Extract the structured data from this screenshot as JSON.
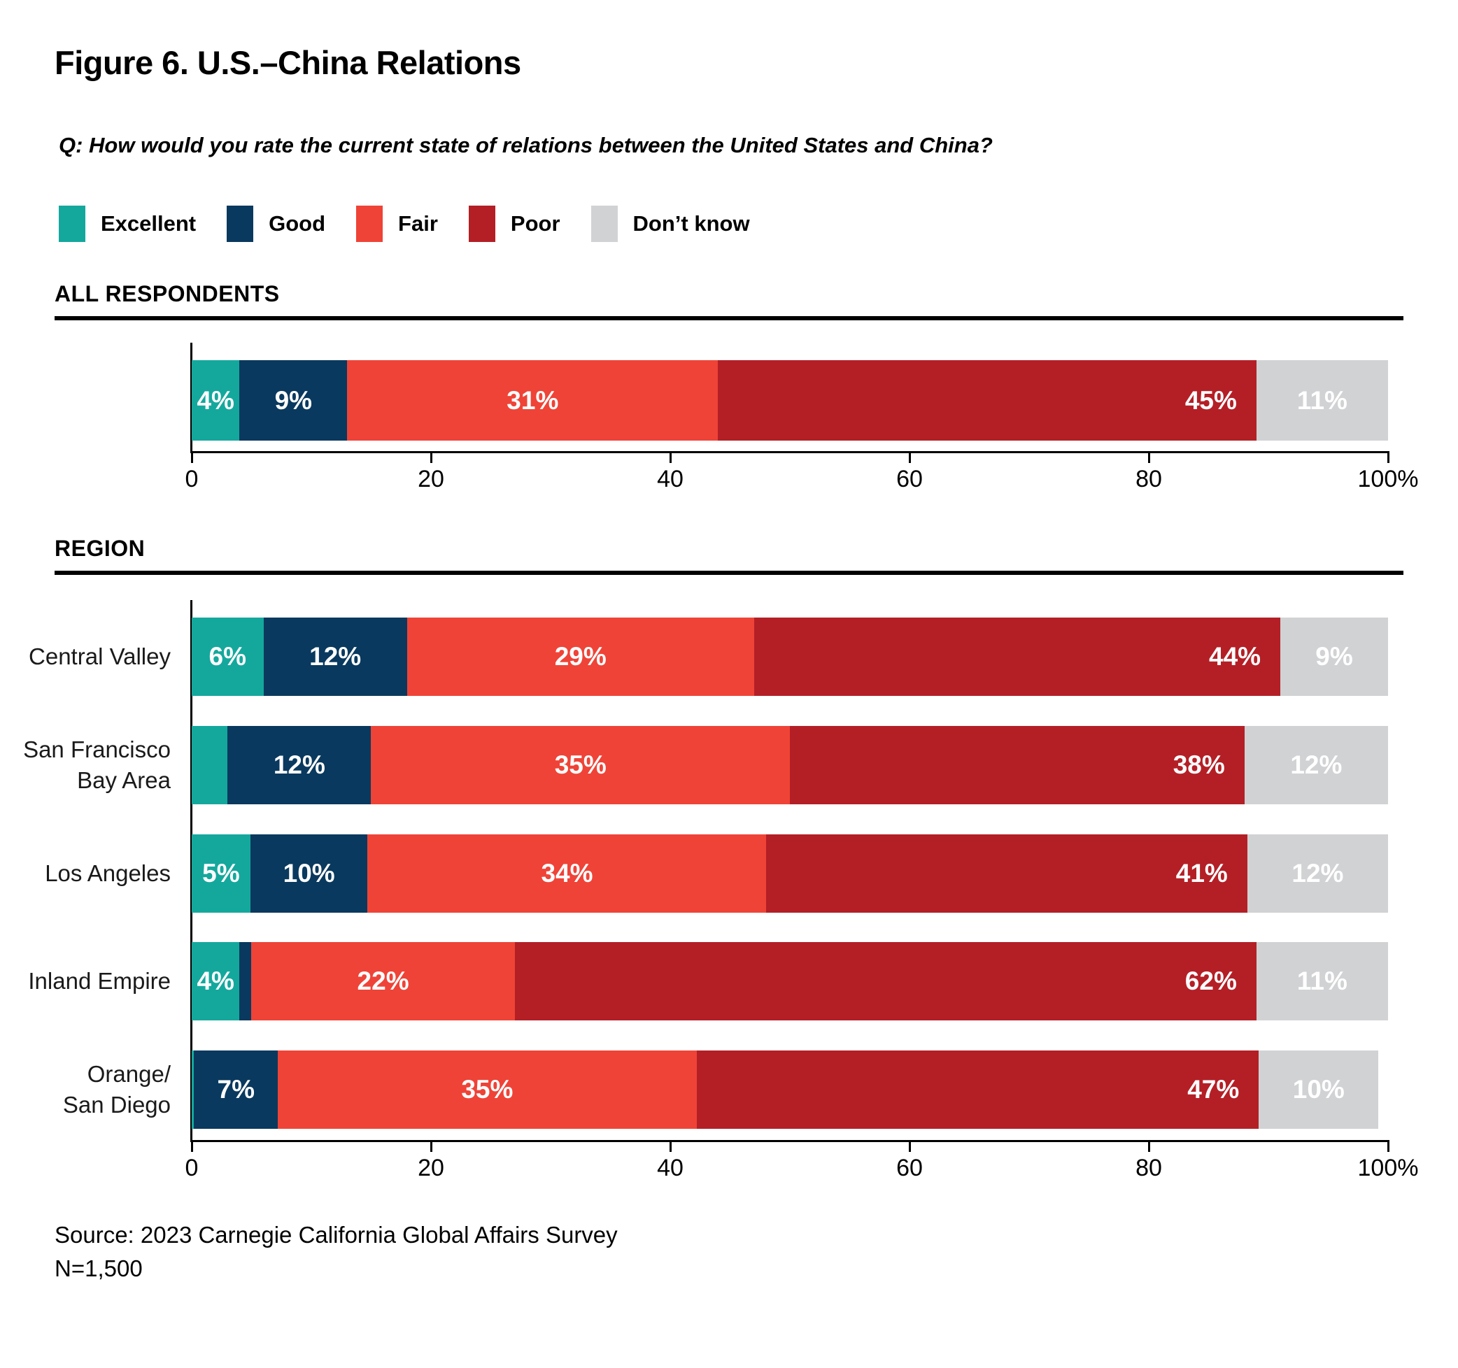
{
  "title": "Figure 6. U.S.–China Relations",
  "question": "Q: How would you rate the current state of relations between the United States and China?",
  "legend": {
    "items": [
      {
        "key": "excellent",
        "label": "Excellent",
        "color": "#14A89D"
      },
      {
        "key": "good",
        "label": "Good",
        "color": "#09395E"
      },
      {
        "key": "fair",
        "label": "Fair",
        "color": "#EF4337"
      },
      {
        "key": "poor",
        "label": "Poor",
        "color": "#B41F26"
      },
      {
        "key": "dont_know",
        "label": "Don’t know",
        "color": "#D1D2D4"
      }
    ]
  },
  "axis": {
    "min": 0,
    "max": 100,
    "ticks": [
      "0",
      "20",
      "40",
      "60",
      "80",
      "100%"
    ]
  },
  "chart_data": [
    {
      "type": "bar",
      "orientation": "horizontal",
      "stacked": true,
      "section_heading": "ALL RESPONDENTS",
      "xlim": [
        0,
        100
      ],
      "x_ticks": [
        "0",
        "20",
        "40",
        "60",
        "80",
        "100%"
      ],
      "grid": false,
      "legend_position": "top",
      "rows": [
        {
          "category": "All respondents",
          "label_lines": [],
          "values": {
            "excellent": 4,
            "good": 9,
            "fair": 31,
            "poor": 45,
            "dont_know": 11
          },
          "printed_labels": {
            "excellent": "4%",
            "good": "9%",
            "fair": "31%",
            "poor": "45%",
            "dont_know": "11%"
          }
        }
      ]
    },
    {
      "type": "bar",
      "orientation": "horizontal",
      "stacked": true,
      "section_heading": "REGION",
      "xlim": [
        0,
        100
      ],
      "x_ticks": [
        "0",
        "20",
        "40",
        "60",
        "80",
        "100%"
      ],
      "grid": false,
      "legend_position": "top",
      "rows": [
        {
          "category": "Central Valley",
          "label_lines": [
            "Central Valley"
          ],
          "values": {
            "excellent": 6,
            "good": 12,
            "fair": 29,
            "poor": 44,
            "dont_know": 9
          },
          "printed_labels": {
            "excellent": "6%",
            "good": "12%",
            "fair": "29%",
            "poor": "44%",
            "dont_know": "9%"
          }
        },
        {
          "category": "San Francisco Bay Area",
          "label_lines": [
            "San Francisco",
            "Bay Area"
          ],
          "values": {
            "excellent": 3,
            "good": 12,
            "fair": 35,
            "poor": 38,
            "dont_know": 12
          },
          "printed_labels": {
            "excellent": "",
            "good": "12%",
            "fair": "35%",
            "poor": "38%",
            "dont_know": "12%"
          }
        },
        {
          "category": "Los Angeles",
          "label_lines": [
            "Los Angeles"
          ],
          "values": {
            "excellent": 5,
            "good": 10,
            "fair": 34,
            "poor": 41,
            "dont_know": 12
          },
          "printed_labels": {
            "excellent": "5%",
            "good": "10%",
            "fair": "34%",
            "poor": "41%",
            "dont_know": "12%"
          }
        },
        {
          "category": "Inland Empire",
          "label_lines": [
            "Inland Empire"
          ],
          "values": {
            "excellent": 4,
            "good": 1,
            "fair": 22,
            "poor": 62,
            "dont_know": 11
          },
          "printed_labels": {
            "excellent": "4%",
            "good": "",
            "fair": "22%",
            "poor": "62%",
            "dont_know": "11%"
          }
        },
        {
          "category": "Orange/San Diego",
          "label_lines": [
            "Orange/",
            "San Diego"
          ],
          "values": {
            "excellent": 0.2,
            "good": 7,
            "fair": 35,
            "poor": 47,
            "dont_know": 10
          },
          "printed_labels": {
            "excellent": "",
            "good": "7%",
            "fair": "35%",
            "poor": "47%",
            "dont_know": "10%"
          }
        }
      ]
    }
  ],
  "source": {
    "line1": "Source: 2023 Carnegie California Global Affairs Survey",
    "line2": "N=1,500"
  }
}
